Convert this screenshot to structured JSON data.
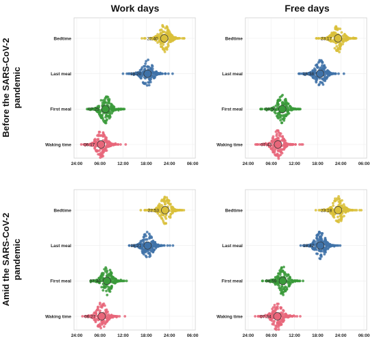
{
  "colors": {
    "Bedtime": "#d9bf3a",
    "Last meal": "#3f72a8",
    "First meal": "#3a9a3a",
    "Waking time": "#e8667a"
  },
  "chart_data": {
    "type": "scatter",
    "description_units": "hours of day (x-axis spans 24:00 to next-day 06:00)",
    "col_titles": [
      "Work days",
      "Free days"
    ],
    "row_titles": [
      "Before the SARS-CoV-2 pandemic",
      "Amid the SARS-CoV-2 pandemic"
    ],
    "categories": [
      "Bedtime",
      "Last meal",
      "First meal",
      "Waking time"
    ],
    "xticks": [
      "24:00",
      "06:00",
      "12:00",
      "18:00",
      "24:00",
      "06:00"
    ],
    "xlim": [
      0,
      30
    ],
    "panels": [
      {
        "row": 0,
        "col": 0,
        "points": [
          {
            "category": "Bedtime",
            "label": "22:40",
            "x": 22.667
          },
          {
            "category": "Last meal",
            "label": "18:20",
            "x": 18.333
          },
          {
            "category": "First meal",
            "label": "07:25",
            "x": 7.417
          },
          {
            "category": "Waking time",
            "label": "06:17",
            "x": 6.283
          }
        ]
      },
      {
        "row": 0,
        "col": 1,
        "points": [
          {
            "category": "Bedtime",
            "label": "23:17",
            "x": 23.283
          },
          {
            "category": "Last meal",
            "label": "18:38",
            "x": 18.633
          },
          {
            "category": "First meal",
            "label": "08:50",
            "x": 8.833
          },
          {
            "category": "Waking time",
            "label": "07:43",
            "x": 7.717
          }
        ]
      },
      {
        "row": 1,
        "col": 0,
        "points": [
          {
            "category": "Bedtime",
            "label": "22:53",
            "x": 22.883
          },
          {
            "category": "Last meal",
            "label": "18:21",
            "x": 18.35
          },
          {
            "category": "First meal",
            "label": "07:48",
            "x": 7.8
          },
          {
            "category": "Waking time",
            "label": "06:27",
            "x": 6.45
          }
        ]
      },
      {
        "row": 1,
        "col": 1,
        "points": [
          {
            "category": "Bedtime",
            "label": "23:18",
            "x": 23.3
          },
          {
            "category": "Last meal",
            "label": "18:42",
            "x": 18.7
          },
          {
            "category": "First meal",
            "label": "08:59",
            "x": 8.983
          },
          {
            "category": "Waking time",
            "label": "07:34",
            "x": 7.567
          }
        ]
      }
    ]
  }
}
